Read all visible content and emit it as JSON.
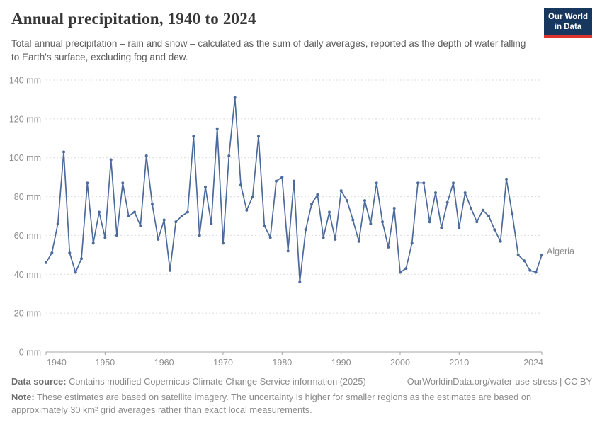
{
  "header": {
    "title": "Annual precipitation, 1940 to 2024",
    "subtitle": "Total annual precipitation – rain and snow – calculated as the sum of daily averages, reported as the depth of water falling to Earth's surface, excluding fog and dew.",
    "logo": {
      "line1": "Our World",
      "line2": "in Data",
      "bg_color": "#18375f",
      "accent_color": "#dd352e"
    }
  },
  "footer": {
    "datasource_label": "Data source:",
    "datasource_text": "Contains modified Copernicus Climate Change Service information (2025)",
    "attribution": "OurWorldinData.org/water-use-stress | CC BY",
    "note_label": "Note:",
    "note_text": "These estimates are based on satellite imagery. The uncertainty is higher for smaller regions as the estimates are based on approximately 30 km² grid averages rather than exact local measurements."
  },
  "chart_data": {
    "type": "line",
    "title": "Annual precipitation, 1940 to 2024",
    "xlabel": "",
    "ylabel": "",
    "unit": "mm",
    "x_range": [
      1940,
      2024
    ],
    "y_range": [
      0,
      140
    ],
    "grid": "dashed horizontal gridlines, solid bottom axis",
    "legend_position": "end-of-line label",
    "x_ticks": [
      {
        "v": 1940,
        "label": "1940"
      },
      {
        "v": 1950,
        "label": "1950"
      },
      {
        "v": 1960,
        "label": "1960"
      },
      {
        "v": 1970,
        "label": "1970"
      },
      {
        "v": 1980,
        "label": "1980"
      },
      {
        "v": 1990,
        "label": "1990"
      },
      {
        "v": 2000,
        "label": "2000"
      },
      {
        "v": 2010,
        "label": "2010"
      },
      {
        "v": 2024,
        "label": "2024"
      }
    ],
    "y_ticks": [
      {
        "v": 0,
        "label": "0 mm"
      },
      {
        "v": 20,
        "label": "20 mm"
      },
      {
        "v": 40,
        "label": "40 mm"
      },
      {
        "v": 60,
        "label": "60 mm"
      },
      {
        "v": 80,
        "label": "80 mm"
      },
      {
        "v": 100,
        "label": "100 mm"
      },
      {
        "v": 120,
        "label": "120 mm"
      },
      {
        "v": 140,
        "label": "140 mm"
      }
    ],
    "series": [
      {
        "name": "Algeria",
        "color": "#4c6a9c",
        "x": [
          1940,
          1941,
          1942,
          1943,
          1944,
          1945,
          1946,
          1947,
          1948,
          1949,
          1950,
          1951,
          1952,
          1953,
          1954,
          1955,
          1956,
          1957,
          1958,
          1959,
          1960,
          1961,
          1962,
          1963,
          1964,
          1965,
          1966,
          1967,
          1968,
          1969,
          1970,
          1971,
          1972,
          1973,
          1974,
          1975,
          1976,
          1977,
          1978,
          1979,
          1980,
          1981,
          1982,
          1983,
          1984,
          1985,
          1986,
          1987,
          1988,
          1989,
          1990,
          1991,
          1992,
          1993,
          1994,
          1995,
          1996,
          1997,
          1998,
          1999,
          2000,
          2001,
          2002,
          2003,
          2004,
          2005,
          2006,
          2007,
          2008,
          2009,
          2010,
          2011,
          2012,
          2013,
          2014,
          2015,
          2016,
          2017,
          2018,
          2019,
          2020,
          2021,
          2022,
          2023,
          2024
        ],
        "values": [
          46,
          51,
          66,
          103,
          51,
          41,
          48,
          87,
          56,
          72,
          59,
          99,
          60,
          87,
          70,
          72,
          65,
          101,
          76,
          58,
          68,
          42,
          67,
          70,
          72,
          111,
          60,
          85,
          66,
          115,
          56,
          101,
          131,
          86,
          73,
          80,
          111,
          65,
          59,
          88,
          90,
          52,
          88,
          36,
          63,
          76,
          81,
          59,
          72,
          58,
          83,
          78,
          68,
          57,
          78,
          66,
          87,
          67,
          54,
          74,
          41,
          43,
          56,
          87,
          87,
          67,
          82,
          64,
          77,
          87,
          64,
          82,
          74,
          67,
          73,
          70,
          63,
          57,
          89,
          71,
          50,
          47,
          42,
          41,
          50
        ]
      }
    ]
  }
}
